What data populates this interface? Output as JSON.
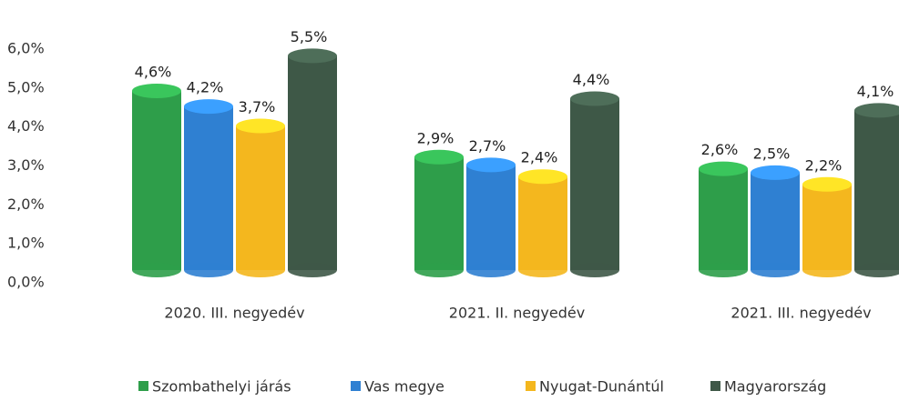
{
  "chart_data": {
    "type": "bar",
    "categories": [
      "2020. III. negyedév",
      "2021. II. negyedév",
      "2021. III. negyedév"
    ],
    "series": [
      {
        "name": "Szombathelyi járás",
        "color": "#2e9e4a",
        "values": [
          4.6,
          2.9,
          2.6
        ],
        "value_labels": [
          "4,6%",
          "2,9%",
          "2,6%"
        ]
      },
      {
        "name": "Vas megye",
        "color": "#2f80d2",
        "values": [
          4.2,
          2.7,
          2.5
        ],
        "value_labels": [
          "4,2%",
          "2,7%",
          "2,5%"
        ]
      },
      {
        "name": "Nyugat-Dunántúl",
        "color": "#f4b71e",
        "values": [
          3.7,
          2.4,
          2.2
        ],
        "value_labels": [
          "3,7%",
          "2,4%",
          "2,2%"
        ]
      },
      {
        "name": "Magyarország",
        "color": "#3e5847",
        "values": [
          5.5,
          4.4,
          4.1
        ],
        "value_labels": [
          "5,5%",
          "4,4%",
          "4,1%"
        ]
      }
    ],
    "ylim": [
      0,
      6
    ],
    "yticks": [
      {
        "value": 0,
        "label": "0,0%"
      },
      {
        "value": 1,
        "label": "1,0%"
      },
      {
        "value": 2,
        "label": "2,0%"
      },
      {
        "value": 3,
        "label": "3,0%"
      },
      {
        "value": 4,
        "label": "4,0%"
      },
      {
        "value": 5,
        "label": "5,0%"
      },
      {
        "value": 6,
        "label": "6,0%"
      }
    ],
    "grid": false
  }
}
